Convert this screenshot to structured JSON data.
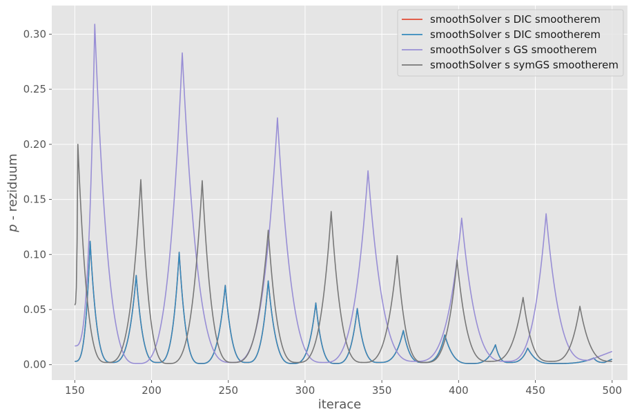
{
  "chart_data": {
    "type": "line",
    "xlabel": "iterace",
    "ylabel_italic": "p",
    "ylabel_rest": " - reziduum",
    "xlim": [
      135,
      510
    ],
    "ylim": [
      -0.014,
      0.326
    ],
    "xticks": [
      150,
      200,
      250,
      300,
      350,
      400,
      450,
      500
    ],
    "yticks": [
      0.0,
      0.05,
      0.1,
      0.15,
      0.2,
      0.25,
      0.3
    ],
    "ytick_labels": [
      "0.00",
      "0.05",
      "0.10",
      "0.15",
      "0.20",
      "0.25",
      "0.30"
    ],
    "grid": true,
    "legend_position": "top-right",
    "series": [
      {
        "name": "smoothSolver s DIC smootherem",
        "color": "#e24a33",
        "peaks": [
          [
            160,
            0.112
          ],
          [
            190,
            0.081
          ],
          [
            218,
            0.102
          ],
          [
            248,
            0.072
          ],
          [
            276,
            0.076
          ],
          [
            307,
            0.056
          ],
          [
            334,
            0.051
          ],
          [
            364,
            0.031
          ],
          [
            391,
            0.027
          ],
          [
            424,
            0.018
          ],
          [
            445,
            0.015
          ],
          [
            488,
            0.006
          ]
        ],
        "valleys": [
          [
            150,
            0.003
          ],
          [
            174,
            0.002
          ],
          [
            204,
            0.002
          ],
          [
            232,
            0.001
          ],
          [
            262,
            0.002
          ],
          [
            292,
            0.001
          ],
          [
            320,
            0.001
          ],
          [
            348,
            0.002
          ],
          [
            377,
            0.002
          ],
          [
            408,
            0.001
          ],
          [
            433,
            0.002
          ],
          [
            462,
            0.001
          ],
          [
            495,
            0.002
          ],
          [
            500,
            0.005
          ]
        ]
      },
      {
        "name": "smoothSolver s DIC smootherem",
        "color": "#348abd",
        "peaks": [
          [
            160,
            0.112
          ],
          [
            190,
            0.081
          ],
          [
            218,
            0.102
          ],
          [
            248,
            0.072
          ],
          [
            276,
            0.076
          ],
          [
            307,
            0.056
          ],
          [
            334,
            0.051
          ],
          [
            364,
            0.031
          ],
          [
            391,
            0.027
          ],
          [
            424,
            0.018
          ],
          [
            445,
            0.015
          ],
          [
            488,
            0.006
          ]
        ],
        "valleys": [
          [
            150,
            0.003
          ],
          [
            174,
            0.002
          ],
          [
            204,
            0.002
          ],
          [
            232,
            0.001
          ],
          [
            262,
            0.002
          ],
          [
            292,
            0.001
          ],
          [
            320,
            0.001
          ],
          [
            348,
            0.002
          ],
          [
            377,
            0.002
          ],
          [
            408,
            0.001
          ],
          [
            433,
            0.002
          ],
          [
            462,
            0.001
          ],
          [
            495,
            0.002
          ],
          [
            500,
            0.005
          ]
        ]
      },
      {
        "name": "smoothSolver s GS smootherem",
        "color": "#988ed5",
        "peaks": [
          [
            163,
            0.309
          ],
          [
            220,
            0.283
          ],
          [
            282,
            0.224
          ],
          [
            341,
            0.176
          ],
          [
            402,
            0.133
          ],
          [
            457,
            0.137
          ]
        ],
        "valleys": [
          [
            150,
            0.017
          ],
          [
            191,
            0.001
          ],
          [
            252,
            0.002
          ],
          [
            312,
            0.002
          ],
          [
            372,
            0.003
          ],
          [
            431,
            0.003
          ],
          [
            485,
            0.004
          ],
          [
            500,
            0.012
          ]
        ]
      },
      {
        "name": "smoothSolver s symGS smootherem",
        "color": "#777777",
        "peaks": [
          [
            152,
            0.2
          ],
          [
            193,
            0.168
          ],
          [
            233,
            0.167
          ],
          [
            276,
            0.122
          ],
          [
            317,
            0.139
          ],
          [
            360,
            0.099
          ],
          [
            399,
            0.095
          ],
          [
            442,
            0.061
          ],
          [
            479,
            0.053
          ]
        ],
        "valleys": [
          [
            150,
            0.054
          ],
          [
            171,
            0.002
          ],
          [
            211,
            0.001
          ],
          [
            253,
            0.002
          ],
          [
            295,
            0.002
          ],
          [
            338,
            0.002
          ],
          [
            378,
            0.002
          ],
          [
            420,
            0.003
          ],
          [
            460,
            0.003
          ],
          [
            500,
            0.003
          ]
        ]
      }
    ]
  }
}
